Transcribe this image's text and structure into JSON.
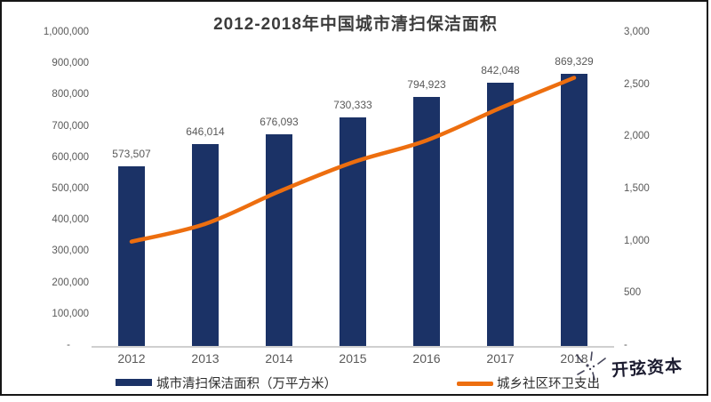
{
  "watermark": {
    "text": "开弦资本",
    "sparkle_icon": "sparkle-doodle"
  },
  "colors": {
    "bar": "#1B3266",
    "line": "#ED6E0F",
    "axis_text": "#595959",
    "axis_line": "#cfcfcf",
    "title_text": "#3c3c3c"
  },
  "chart_data": {
    "type": "bar",
    "title": "2012-2018年中国城市清扫保洁面积",
    "categories": [
      "2012",
      "2013",
      "2014",
      "2015",
      "2016",
      "2017",
      "2018"
    ],
    "series": [
      {
        "name": "城市清扫保洁面积（万平方米）",
        "type": "bar",
        "axis": "left",
        "color": "#1B3266",
        "values": [
          573507,
          646014,
          676093,
          730333,
          794923,
          842048,
          869329
        ],
        "labels": [
          "573,507",
          "646,014",
          "676,093",
          "730,333",
          "794,923",
          "842,048",
          "869,329"
        ]
      },
      {
        "name": "城乡社区环卫支出",
        "type": "line",
        "axis": "right",
        "color": "#ED6E0F",
        "values": [
          1000,
          1170,
          1480,
          1760,
          1970,
          2280,
          2570
        ]
      }
    ],
    "left_axis": {
      "min": 0,
      "max": 1000000,
      "ticks": [
        "1,000,000",
        "900,000",
        "800,000",
        "700,000",
        "600,000",
        "500,000",
        "400,000",
        "300,000",
        "200,000",
        "100,000",
        "-"
      ]
    },
    "right_axis": {
      "min": 0,
      "max": 3000,
      "ticks": [
        "3,000",
        "2,500",
        "2,000",
        "1,500",
        "1,000",
        "500",
        "-"
      ]
    },
    "legend_position": "bottom",
    "grid": false
  }
}
